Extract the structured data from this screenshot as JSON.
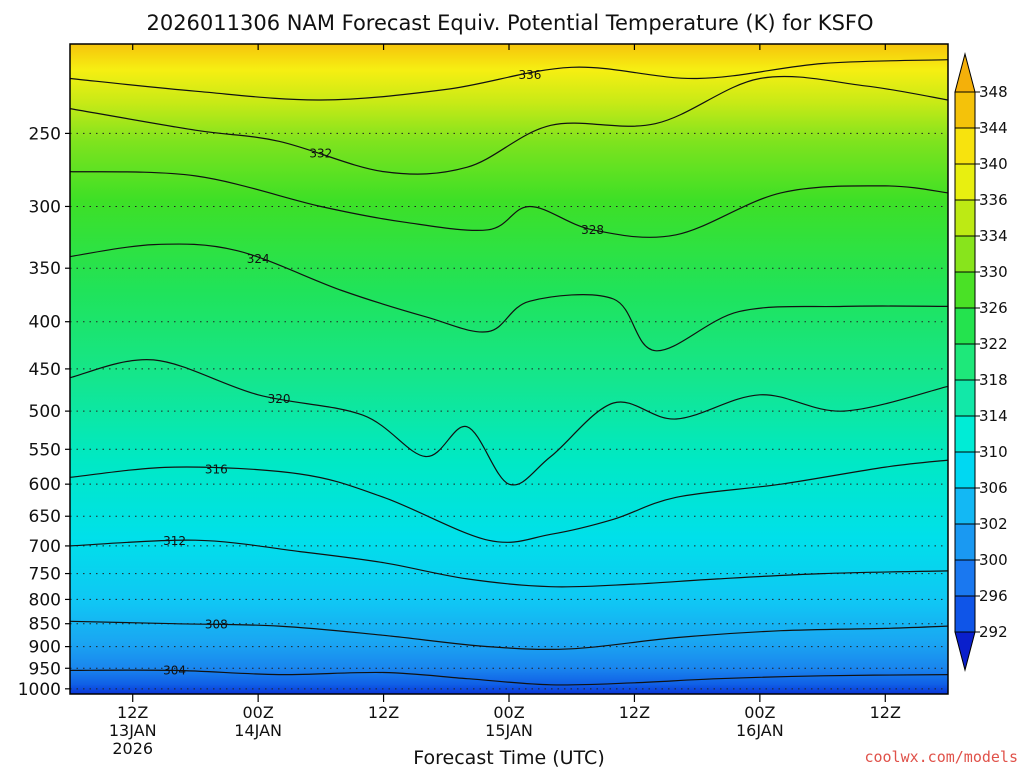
{
  "chart_data": {
    "type": "heatmap",
    "title": "2026011306 NAM Forecast Equiv. Potential Temperature (K) for KSFO",
    "xlabel": "Forecast Time (UTC)",
    "ylabel": "",
    "x_ticks": [
      {
        "label": "12Z",
        "sub1": "13JAN",
        "sub2": "2026"
      },
      {
        "label": "00Z",
        "sub1": "14JAN",
        "sub2": ""
      },
      {
        "label": "12Z",
        "sub1": "",
        "sub2": ""
      },
      {
        "label": "00Z",
        "sub1": "15JAN",
        "sub2": ""
      },
      {
        "label": "12Z",
        "sub1": "",
        "sub2": ""
      },
      {
        "label": "00Z",
        "sub1": "16JAN",
        "sub2": ""
      },
      {
        "label": "12Z",
        "sub1": "",
        "sub2": ""
      }
    ],
    "x_tick_hours": [
      6,
      18,
      30,
      42,
      54,
      66,
      78
    ],
    "x_range_hours": [
      0,
      84
    ],
    "y_levels": [
      250,
      300,
      350,
      400,
      450,
      500,
      550,
      600,
      650,
      700,
      750,
      800,
      850,
      900,
      950,
      1000
    ],
    "y_level_labels": [
      "250",
      "300",
      "350",
      "400",
      "450",
      "500",
      "550",
      "600",
      "650",
      "700",
      "750",
      "800",
      "850",
      "900",
      "950",
      "1000"
    ],
    "y_range_hpa": [
      200,
      1013
    ],
    "colorbar": {
      "levels": [
        292,
        296,
        300,
        302,
        306,
        310,
        314,
        318,
        322,
        326,
        330,
        334,
        336,
        340,
        344,
        348
      ],
      "labels": [
        "292",
        "296",
        "300",
        "302",
        "306",
        "310",
        "314",
        "318",
        "322",
        "326",
        "330",
        "334",
        "336",
        "340",
        "344",
        "348"
      ],
      "colors": [
        "#0a2fd6",
        "#0f55e8",
        "#1a78f0",
        "#1a99f2",
        "#13b8f4",
        "#00d8f2",
        "#00ecd6",
        "#12e8a8",
        "#1ee87a",
        "#24e34e",
        "#4ae126",
        "#88e41c",
        "#bdea14",
        "#e8ef10",
        "#f7e30e",
        "#f4c20a"
      ]
    },
    "isotherms": [
      {
        "value": 336,
        "label": "336",
        "p_at_hour": [
          [
            0,
            218
          ],
          [
            12,
            225
          ],
          [
            24,
            230
          ],
          [
            36,
            224
          ],
          [
            48,
            212
          ],
          [
            60,
            218
          ],
          [
            72,
            210
          ],
          [
            84,
            208
          ]
        ]
      },
      {
        "value": 332,
        "label": "332",
        "p_at_hour": [
          [
            0,
            235
          ],
          [
            12,
            248
          ],
          [
            20,
            255
          ],
          [
            30,
            275
          ],
          [
            38,
            272
          ],
          [
            46,
            245
          ],
          [
            56,
            244
          ],
          [
            66,
            218
          ],
          [
            76,
            222
          ],
          [
            84,
            230
          ]
        ]
      },
      {
        "value": 328,
        "label": "328",
        "p_at_hour": [
          [
            0,
            275
          ],
          [
            12,
            278
          ],
          [
            24,
            300
          ],
          [
            32,
            312
          ],
          [
            40,
            318
          ],
          [
            44,
            300
          ],
          [
            50,
            318
          ],
          [
            58,
            322
          ],
          [
            68,
            290
          ],
          [
            78,
            285
          ],
          [
            84,
            290
          ]
        ]
      },
      {
        "value": 324,
        "label": "324",
        "p_at_hour": [
          [
            0,
            340
          ],
          [
            8,
            330
          ],
          [
            16,
            335
          ],
          [
            26,
            370
          ],
          [
            34,
            395
          ],
          [
            40,
            410
          ],
          [
            44,
            380
          ],
          [
            52,
            378
          ],
          [
            56,
            430
          ],
          [
            64,
            390
          ],
          [
            74,
            385
          ],
          [
            84,
            385
          ]
        ]
      },
      {
        "value": 320,
        "label": "320",
        "p_at_hour": [
          [
            0,
            460
          ],
          [
            8,
            440
          ],
          [
            18,
            480
          ],
          [
            28,
            505
          ],
          [
            34,
            560
          ],
          [
            38,
            520
          ],
          [
            42,
            600
          ],
          [
            46,
            560
          ],
          [
            52,
            490
          ],
          [
            58,
            510
          ],
          [
            66,
            480
          ],
          [
            74,
            500
          ],
          [
            84,
            470
          ]
        ]
      },
      {
        "value": 316,
        "label": "316",
        "p_at_hour": [
          [
            0,
            590
          ],
          [
            10,
            575
          ],
          [
            22,
            585
          ],
          [
            30,
            620
          ],
          [
            40,
            690
          ],
          [
            46,
            680
          ],
          [
            52,
            655
          ],
          [
            58,
            620
          ],
          [
            68,
            600
          ],
          [
            78,
            575
          ],
          [
            84,
            565
          ]
        ]
      },
      {
        "value": 312,
        "label": "312",
        "p_at_hour": [
          [
            0,
            700
          ],
          [
            12,
            690
          ],
          [
            22,
            710
          ],
          [
            30,
            730
          ],
          [
            38,
            760
          ],
          [
            46,
            775
          ],
          [
            54,
            770
          ],
          [
            62,
            760
          ],
          [
            72,
            750
          ],
          [
            84,
            745
          ]
        ]
      },
      {
        "value": 308,
        "label": "308",
        "p_at_hour": [
          [
            0,
            845
          ],
          [
            10,
            850
          ],
          [
            20,
            855
          ],
          [
            30,
            875
          ],
          [
            40,
            900
          ],
          [
            48,
            905
          ],
          [
            58,
            880
          ],
          [
            68,
            865
          ],
          [
            78,
            860
          ],
          [
            84,
            855
          ]
        ]
      },
      {
        "value": 304,
        "label": "304",
        "p_at_hour": [
          [
            0,
            955
          ],
          [
            10,
            955
          ],
          [
            20,
            965
          ],
          [
            30,
            960
          ],
          [
            38,
            975
          ],
          [
            46,
            990
          ],
          [
            54,
            985
          ],
          [
            62,
            975
          ],
          [
            72,
            968
          ],
          [
            84,
            965
          ]
        ]
      }
    ]
  },
  "credit": "coolwx.com/models",
  "colors": {
    "ground": "#a24f2a",
    "axis": "#000000"
  }
}
